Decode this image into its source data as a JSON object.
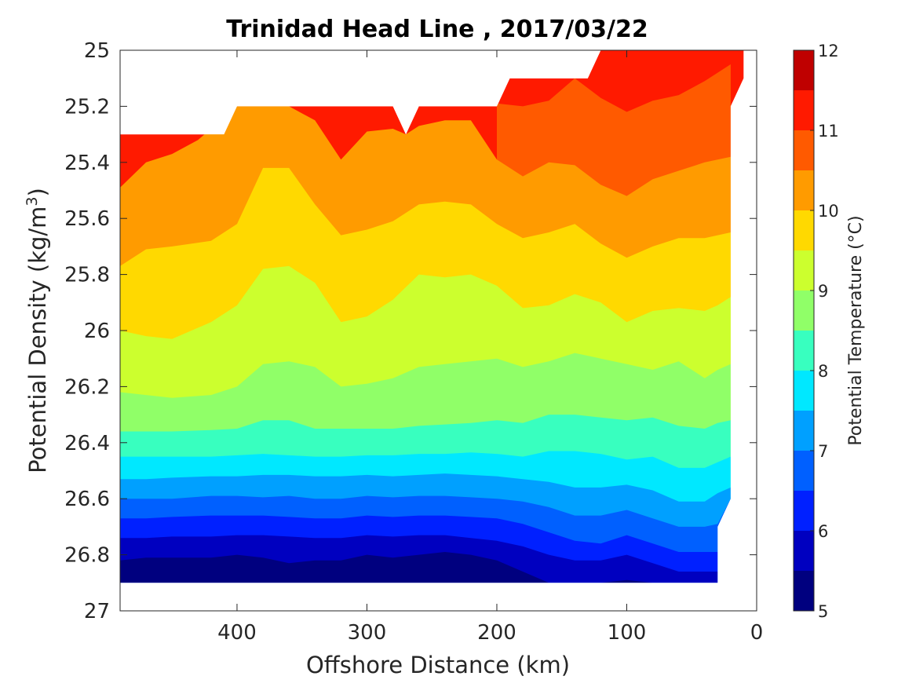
{
  "chart_data": {
    "type": "contour",
    "title": "Trinidad Head Line , 2017/03/22",
    "xlabel": "Offshore Distance (km)",
    "ylabel_prefix": "Potential Density (kg/m",
    "ylabel_sup": "3",
    "ylabel_suffix": ")",
    "colorbar_label": "Potential Temperature (°C)",
    "x_axis": {
      "range": [
        490,
        0
      ],
      "reversed": true,
      "ticks": [
        "400",
        "300",
        "200",
        "100",
        "0"
      ],
      "tick_values": [
        400,
        300,
        200,
        100,
        0
      ]
    },
    "y_axis": {
      "range": [
        25,
        27
      ],
      "reversed": true,
      "ticks": [
        "25",
        "25.2",
        "25.4",
        "25.6",
        "25.8",
        "26",
        "26.2",
        "26.4",
        "26.6",
        "26.8",
        "27"
      ],
      "tick_values": [
        25,
        25.2,
        25.4,
        25.6,
        25.8,
        26,
        26.2,
        26.4,
        26.6,
        26.8,
        27
      ]
    },
    "colorbar": {
      "range": [
        5,
        12
      ],
      "ticks": [
        "5",
        "6",
        "7",
        "8",
        "9",
        "10",
        "11",
        "12"
      ],
      "tick_values": [
        5,
        6,
        7,
        8,
        9,
        10,
        11,
        12
      ],
      "levels": [
        5,
        5.5,
        6,
        6.5,
        7,
        7.5,
        8,
        8.5,
        9,
        9.5,
        10,
        10.5,
        11,
        11.5,
        12
      ],
      "colors": [
        "#00007f",
        "#0000c0",
        "#0020ff",
        "#0060ff",
        "#00a0ff",
        "#00e8ff",
        "#38ffbf",
        "#90ff68",
        "#ccff2e",
        "#ffd900",
        "#ff9b00",
        "#ff5a00",
        "#ff1a00",
        "#bf0000"
      ]
    },
    "isotherms": [
      {
        "temp": 5.5,
        "points": [
          [
            490,
            26.82
          ],
          [
            470,
            26.81
          ],
          [
            450,
            26.81
          ],
          [
            420,
            26.81
          ],
          [
            400,
            26.8
          ],
          [
            380,
            26.81
          ],
          [
            360,
            26.83
          ],
          [
            340,
            26.82
          ],
          [
            320,
            26.82
          ],
          [
            300,
            26.8
          ],
          [
            280,
            26.81
          ],
          [
            260,
            26.8
          ],
          [
            240,
            26.79
          ],
          [
            220,
            26.8
          ],
          [
            200,
            26.82
          ],
          [
            180,
            26.86
          ],
          [
            160,
            26.9
          ],
          [
            140,
            26.9
          ],
          [
            120,
            26.9
          ],
          [
            100,
            26.89
          ],
          [
            80,
            26.9
          ],
          [
            60,
            26.9
          ],
          [
            40,
            26.9
          ],
          [
            30,
            26.9
          ]
        ]
      },
      {
        "temp": 6,
        "points": [
          [
            490,
            26.74
          ],
          [
            470,
            26.74
          ],
          [
            450,
            26.735
          ],
          [
            420,
            26.735
          ],
          [
            400,
            26.73
          ],
          [
            380,
            26.73
          ],
          [
            360,
            26.735
          ],
          [
            340,
            26.74
          ],
          [
            320,
            26.74
          ],
          [
            300,
            26.73
          ],
          [
            280,
            26.735
          ],
          [
            260,
            26.73
          ],
          [
            240,
            26.73
          ],
          [
            220,
            26.74
          ],
          [
            200,
            26.75
          ],
          [
            180,
            26.77
          ],
          [
            160,
            26.8
          ],
          [
            140,
            26.82
          ],
          [
            120,
            26.82
          ],
          [
            100,
            26.8
          ],
          [
            80,
            26.83
          ],
          [
            60,
            26.86
          ],
          [
            40,
            26.86
          ],
          [
            30,
            26.86
          ]
        ]
      },
      {
        "temp": 6.5,
        "points": [
          [
            490,
            26.67
          ],
          [
            470,
            26.67
          ],
          [
            450,
            26.665
          ],
          [
            420,
            26.66
          ],
          [
            400,
            26.66
          ],
          [
            380,
            26.66
          ],
          [
            360,
            26.665
          ],
          [
            340,
            26.67
          ],
          [
            320,
            26.67
          ],
          [
            300,
            26.66
          ],
          [
            280,
            26.665
          ],
          [
            260,
            26.66
          ],
          [
            240,
            26.66
          ],
          [
            220,
            26.665
          ],
          [
            200,
            26.67
          ],
          [
            180,
            26.69
          ],
          [
            160,
            26.72
          ],
          [
            140,
            26.75
          ],
          [
            120,
            26.76
          ],
          [
            100,
            26.73
          ],
          [
            80,
            26.76
          ],
          [
            60,
            26.79
          ],
          [
            40,
            26.79
          ],
          [
            30,
            26.79
          ]
        ]
      },
      {
        "temp": 7,
        "points": [
          [
            490,
            26.6
          ],
          [
            470,
            26.6
          ],
          [
            450,
            26.6
          ],
          [
            420,
            26.59
          ],
          [
            400,
            26.59
          ],
          [
            380,
            26.595
          ],
          [
            360,
            26.59
          ],
          [
            340,
            26.6
          ],
          [
            320,
            26.6
          ],
          [
            300,
            26.59
          ],
          [
            280,
            26.595
          ],
          [
            260,
            26.59
          ],
          [
            240,
            26.59
          ],
          [
            220,
            26.595
          ],
          [
            200,
            26.6
          ],
          [
            180,
            26.61
          ],
          [
            160,
            26.63
          ],
          [
            140,
            26.66
          ],
          [
            120,
            26.66
          ],
          [
            100,
            26.64
          ],
          [
            80,
            26.67
          ],
          [
            60,
            26.7
          ],
          [
            40,
            26.7
          ],
          [
            30,
            26.69
          ],
          [
            20,
            26.6
          ]
        ]
      },
      {
        "temp": 7.5,
        "points": [
          [
            490,
            26.53
          ],
          [
            470,
            26.53
          ],
          [
            450,
            26.525
          ],
          [
            420,
            26.52
          ],
          [
            400,
            26.52
          ],
          [
            380,
            26.515
          ],
          [
            360,
            26.515
          ],
          [
            340,
            26.52
          ],
          [
            320,
            26.52
          ],
          [
            300,
            26.515
          ],
          [
            280,
            26.52
          ],
          [
            260,
            26.515
          ],
          [
            240,
            26.51
          ],
          [
            220,
            26.515
          ],
          [
            200,
            26.52
          ],
          [
            180,
            26.53
          ],
          [
            160,
            26.54
          ],
          [
            140,
            26.56
          ],
          [
            120,
            26.56
          ],
          [
            100,
            26.55
          ],
          [
            80,
            26.57
          ],
          [
            60,
            26.61
          ],
          [
            40,
            26.61
          ],
          [
            30,
            26.58
          ],
          [
            20,
            26.56
          ]
        ]
      },
      {
        "temp": 8,
        "points": [
          [
            490,
            26.45
          ],
          [
            470,
            26.45
          ],
          [
            450,
            26.45
          ],
          [
            420,
            26.45
          ],
          [
            400,
            26.445
          ],
          [
            380,
            26.44
          ],
          [
            360,
            26.445
          ],
          [
            340,
            26.45
          ],
          [
            320,
            26.45
          ],
          [
            300,
            26.445
          ],
          [
            280,
            26.445
          ],
          [
            260,
            26.44
          ],
          [
            240,
            26.44
          ],
          [
            220,
            26.435
          ],
          [
            200,
            26.44
          ],
          [
            180,
            26.45
          ],
          [
            160,
            26.43
          ],
          [
            140,
            26.43
          ],
          [
            120,
            26.44
          ],
          [
            100,
            26.46
          ],
          [
            80,
            26.45
          ],
          [
            60,
            26.49
          ],
          [
            40,
            26.49
          ],
          [
            30,
            26.47
          ],
          [
            20,
            26.45
          ]
        ]
      },
      {
        "temp": 8.5,
        "points": [
          [
            490,
            26.36
          ],
          [
            470,
            26.36
          ],
          [
            450,
            26.36
          ],
          [
            420,
            26.355
          ],
          [
            400,
            26.35
          ],
          [
            380,
            26.32
          ],
          [
            360,
            26.32
          ],
          [
            340,
            26.35
          ],
          [
            320,
            26.35
          ],
          [
            300,
            26.35
          ],
          [
            280,
            26.35
          ],
          [
            260,
            26.34
          ],
          [
            240,
            26.335
          ],
          [
            220,
            26.33
          ],
          [
            200,
            26.32
          ],
          [
            180,
            26.33
          ],
          [
            160,
            26.3
          ],
          [
            140,
            26.3
          ],
          [
            120,
            26.31
          ],
          [
            100,
            26.32
          ],
          [
            80,
            26.31
          ],
          [
            60,
            26.34
          ],
          [
            40,
            26.35
          ],
          [
            30,
            26.33
          ],
          [
            20,
            26.32
          ]
        ]
      },
      {
        "temp": 9,
        "points": [
          [
            490,
            26.22
          ],
          [
            470,
            26.23
          ],
          [
            450,
            26.24
          ],
          [
            420,
            26.23
          ],
          [
            400,
            26.2
          ],
          [
            380,
            26.12
          ],
          [
            360,
            26.11
          ],
          [
            340,
            26.13
          ],
          [
            320,
            26.2
          ],
          [
            300,
            26.19
          ],
          [
            280,
            26.17
          ],
          [
            260,
            26.13
          ],
          [
            240,
            26.12
          ],
          [
            220,
            26.11
          ],
          [
            200,
            26.1
          ],
          [
            180,
            26.13
          ],
          [
            160,
            26.11
          ],
          [
            140,
            26.08
          ],
          [
            120,
            26.1
          ],
          [
            100,
            26.12
          ],
          [
            80,
            26.14
          ],
          [
            60,
            26.11
          ],
          [
            40,
            26.17
          ],
          [
            30,
            26.14
          ],
          [
            20,
            26.12
          ]
        ]
      },
      {
        "temp": 9.5,
        "points": [
          [
            490,
            26.0
          ],
          [
            470,
            26.02
          ],
          [
            450,
            26.03
          ],
          [
            420,
            25.97
          ],
          [
            400,
            25.91
          ],
          [
            380,
            25.78
          ],
          [
            360,
            25.77
          ],
          [
            340,
            25.83
          ],
          [
            320,
            25.97
          ],
          [
            300,
            25.95
          ],
          [
            280,
            25.89
          ],
          [
            260,
            25.8
          ],
          [
            240,
            25.81
          ],
          [
            220,
            25.8
          ],
          [
            200,
            25.84
          ],
          [
            180,
            25.92
          ],
          [
            160,
            25.91
          ],
          [
            140,
            25.87
          ],
          [
            120,
            25.9
          ],
          [
            100,
            25.97
          ],
          [
            80,
            25.93
          ],
          [
            60,
            25.92
          ],
          [
            40,
            25.93
          ],
          [
            30,
            25.91
          ],
          [
            20,
            25.88
          ]
        ]
      },
      {
        "temp": 10,
        "points": [
          [
            490,
            25.77
          ],
          [
            470,
            25.71
          ],
          [
            450,
            25.7
          ],
          [
            420,
            25.68
          ],
          [
            400,
            25.62
          ],
          [
            380,
            25.42
          ],
          [
            360,
            25.42
          ],
          [
            340,
            25.55
          ],
          [
            320,
            25.66
          ],
          [
            300,
            25.64
          ],
          [
            280,
            25.61
          ],
          [
            260,
            25.55
          ],
          [
            240,
            25.54
          ],
          [
            220,
            25.55
          ],
          [
            200,
            25.62
          ],
          [
            180,
            25.67
          ],
          [
            160,
            25.65
          ],
          [
            140,
            25.62
          ],
          [
            120,
            25.69
          ],
          [
            100,
            25.74
          ],
          [
            80,
            25.7
          ],
          [
            60,
            25.67
          ],
          [
            40,
            25.67
          ],
          [
            30,
            25.66
          ],
          [
            20,
            25.65
          ]
        ]
      },
      {
        "temp": 10.5,
        "points": [
          [
            490,
            25.49
          ],
          [
            470,
            25.4
          ],
          [
            450,
            25.37
          ],
          [
            430,
            25.32
          ],
          [
            400,
            25.2
          ],
          [
            360,
            25.2
          ],
          [
            340,
            25.25
          ],
          [
            320,
            25.39
          ],
          [
            300,
            25.29
          ],
          [
            280,
            25.28
          ],
          [
            270,
            25.3
          ],
          [
            260,
            25.27
          ],
          [
            240,
            25.25
          ],
          [
            220,
            25.25
          ],
          [
            200,
            25.39
          ],
          [
            180,
            25.45
          ],
          [
            160,
            25.4
          ],
          [
            140,
            25.41
          ],
          [
            120,
            25.48
          ],
          [
            100,
            25.52
          ],
          [
            80,
            25.46
          ],
          [
            60,
            25.43
          ],
          [
            40,
            25.4
          ],
          [
            30,
            25.39
          ],
          [
            20,
            25.38
          ]
        ]
      },
      {
        "temp": 11,
        "points": [
          [
            200,
            25.19
          ],
          [
            180,
            25.2
          ],
          [
            160,
            25.18
          ],
          [
            140,
            25.1
          ],
          [
            120,
            25.17
          ],
          [
            100,
            25.22
          ],
          [
            80,
            25.18
          ],
          [
            60,
            25.16
          ],
          [
            40,
            25.11
          ],
          [
            30,
            25.08
          ],
          [
            20,
            25.05
          ]
        ]
      }
    ]
  }
}
